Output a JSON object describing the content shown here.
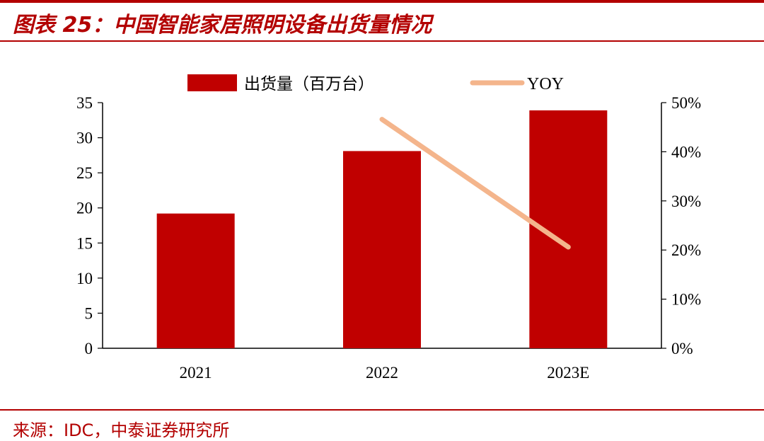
{
  "header": {
    "title": "图表 25：中国智能家居照明设备出货量情况"
  },
  "footer": {
    "source": "来源：IDC，中泰证券研究所"
  },
  "colors": {
    "accent": "#b30000",
    "bar": "#c00000",
    "line": "#f4b58c"
  },
  "chart_data": {
    "type": "bar",
    "title": "",
    "categories": [
      "2021",
      "2022",
      "2023E"
    ],
    "series": [
      {
        "name": "出货量（百万台）",
        "type": "bar",
        "axis": "left",
        "values": [
          19.2,
          28.1,
          33.9
        ]
      },
      {
        "name": "YOY",
        "type": "line",
        "axis": "right",
        "values": [
          null,
          0.466,
          0.206
        ]
      }
    ],
    "y_left": {
      "ylim": [
        0,
        35
      ],
      "ticks": [
        "0",
        "5",
        "10",
        "15",
        "20",
        "25",
        "30",
        "35"
      ]
    },
    "y_right": {
      "ylim": [
        0,
        0.5
      ],
      "ticks": [
        "0%",
        "10%",
        "20%",
        "30%",
        "40%",
        "50%"
      ]
    },
    "legend": "top",
    "grid": false
  }
}
